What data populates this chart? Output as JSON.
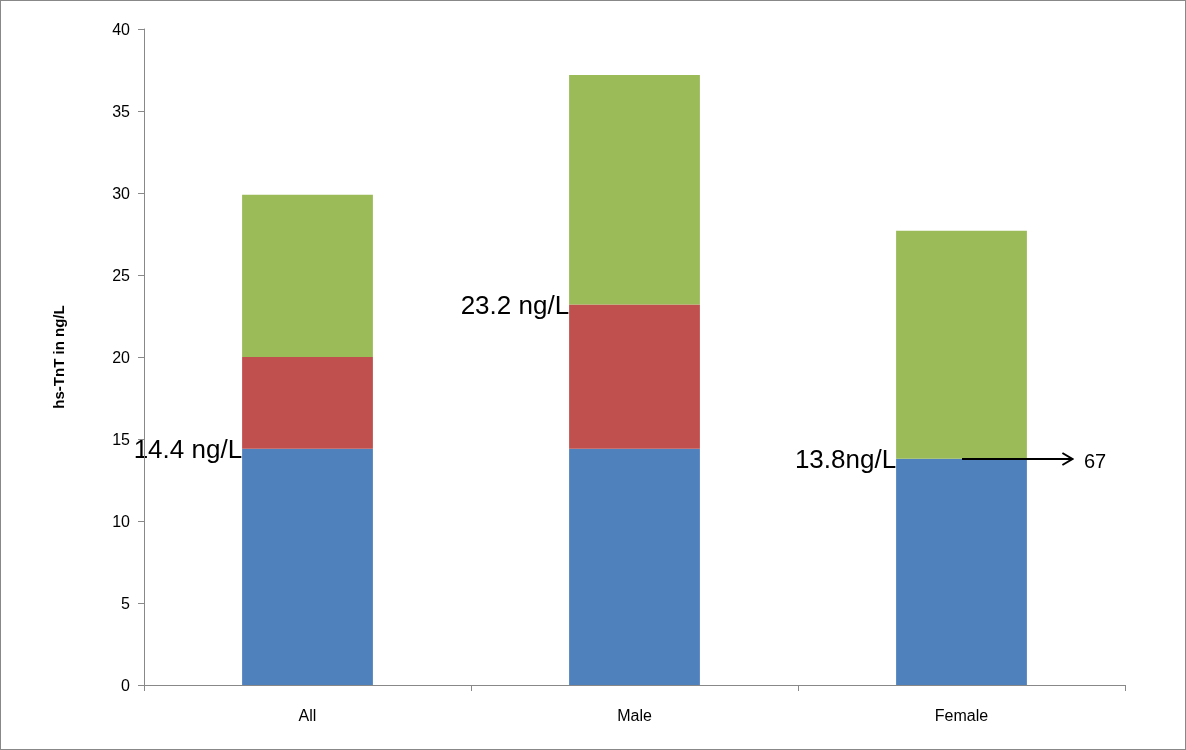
{
  "chart_data": {
    "type": "bar",
    "stacked": true,
    "categories": [
      "All",
      "Male",
      "Female"
    ],
    "ylabel": "hs-TnT in ng/L",
    "series": [
      {
        "color": "#4f81bd",
        "values": [
          14.4,
          14.4,
          13.8
        ]
      },
      {
        "color": "#c0504d",
        "values": [
          5.6,
          8.8,
          0
        ]
      },
      {
        "color": "#9bbb59",
        "values": [
          9.9,
          14.0,
          13.9
        ]
      }
    ],
    "ylim": [
      0,
      40
    ],
    "yticks": [
      0,
      5,
      10,
      15,
      20,
      25,
      30,
      35,
      40
    ],
    "grid": false,
    "annotations": [
      {
        "text": "14.4 ng/L",
        "x": "All",
        "y": 14.4
      },
      {
        "text": "23.2 ng/L",
        "x": "Male",
        "y": 23.2
      },
      {
        "text": "13.8ng/L",
        "x": "Female",
        "y": 13.8
      },
      {
        "text": "67",
        "x": "Female",
        "y": 13.8
      }
    ]
  }
}
